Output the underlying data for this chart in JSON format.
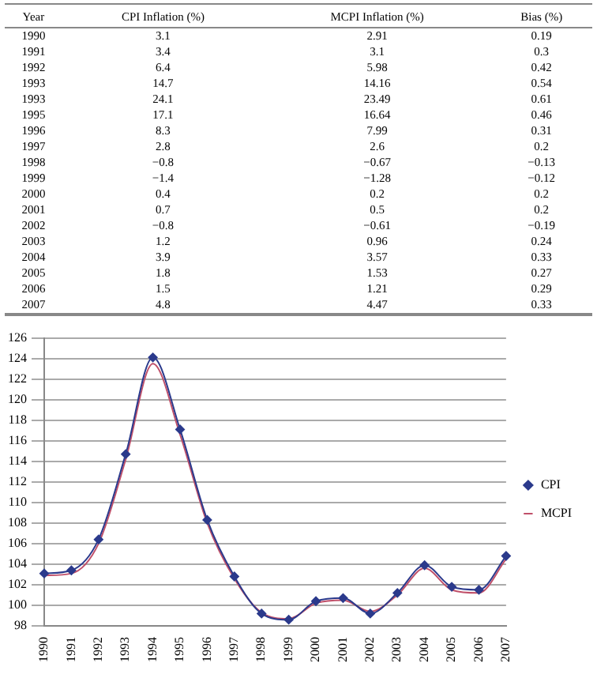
{
  "chart_data": [
    {
      "type": "heatmap",
      "ylabel": "Year",
      "data_labels": true,
      "categories": [
        "CPI Inflation (%)",
        "MCPI Inflation (%)",
        "Bias (%)"
      ],
      "y_categories": [
        "1990",
        "1991",
        "1992",
        "1993",
        "1993",
        "1995",
        "1996",
        "1997",
        "1998",
        "1999",
        "2000",
        "2001",
        "2002",
        "2003",
        "2004",
        "2005",
        "2006",
        "2007"
      ],
      "cells": [
        [
          3.1,
          2.91,
          0.19
        ],
        [
          3.4,
          3.1,
          0.3
        ],
        [
          6.4,
          5.98,
          0.42
        ],
        [
          14.7,
          14.16,
          0.54
        ],
        [
          24.1,
          23.49,
          0.61
        ],
        [
          17.1,
          16.64,
          0.46
        ],
        [
          8.3,
          7.99,
          0.31
        ],
        [
          2.8,
          2.6,
          0.2
        ],
        [
          -0.8,
          -0.67,
          -0.13
        ],
        [
          -1.4,
          -1.28,
          -0.12
        ],
        [
          0.4,
          0.2,
          0.2
        ],
        [
          0.7,
          0.5,
          0.2
        ],
        [
          -0.8,
          -0.61,
          -0.19
        ],
        [
          1.2,
          0.96,
          0.24
        ],
        [
          3.9,
          3.57,
          0.33
        ],
        [
          1.8,
          1.53,
          0.27
        ],
        [
          1.5,
          1.21,
          0.29
        ],
        [
          4.8,
          4.47,
          0.33
        ]
      ]
    },
    {
      "type": "line",
      "categories": [
        "1990",
        "1991",
        "1992",
        "1993",
        "1994",
        "1995",
        "1996",
        "1997",
        "1998",
        "1999",
        "2000",
        "2001",
        "2002",
        "2003",
        "2004",
        "2005",
        "2006",
        "2007"
      ],
      "series": [
        {
          "name": "CPI",
          "color": "#2b3a8c",
          "marker": "diamond",
          "values": [
            103.1,
            103.4,
            106.4,
            114.7,
            124.1,
            117.1,
            108.3,
            102.8,
            99.2,
            98.6,
            100.4,
            100.7,
            99.2,
            101.2,
            103.9,
            101.8,
            101.5,
            104.8
          ]
        },
        {
          "name": "MCPI",
          "color": "#c0506a",
          "marker": "none",
          "values": [
            102.9,
            103.1,
            106.0,
            114.2,
            123.5,
            116.6,
            108.0,
            102.6,
            99.3,
            98.7,
            100.2,
            100.5,
            99.4,
            101.0,
            103.6,
            101.5,
            101.2,
            104.5
          ]
        }
      ],
      "ylim": [
        98,
        126
      ],
      "yticks": [
        98,
        100,
        102,
        104,
        106,
        108,
        110,
        112,
        114,
        116,
        118,
        120,
        122,
        124,
        126
      ],
      "grid": "y",
      "legend": "right"
    }
  ]
}
